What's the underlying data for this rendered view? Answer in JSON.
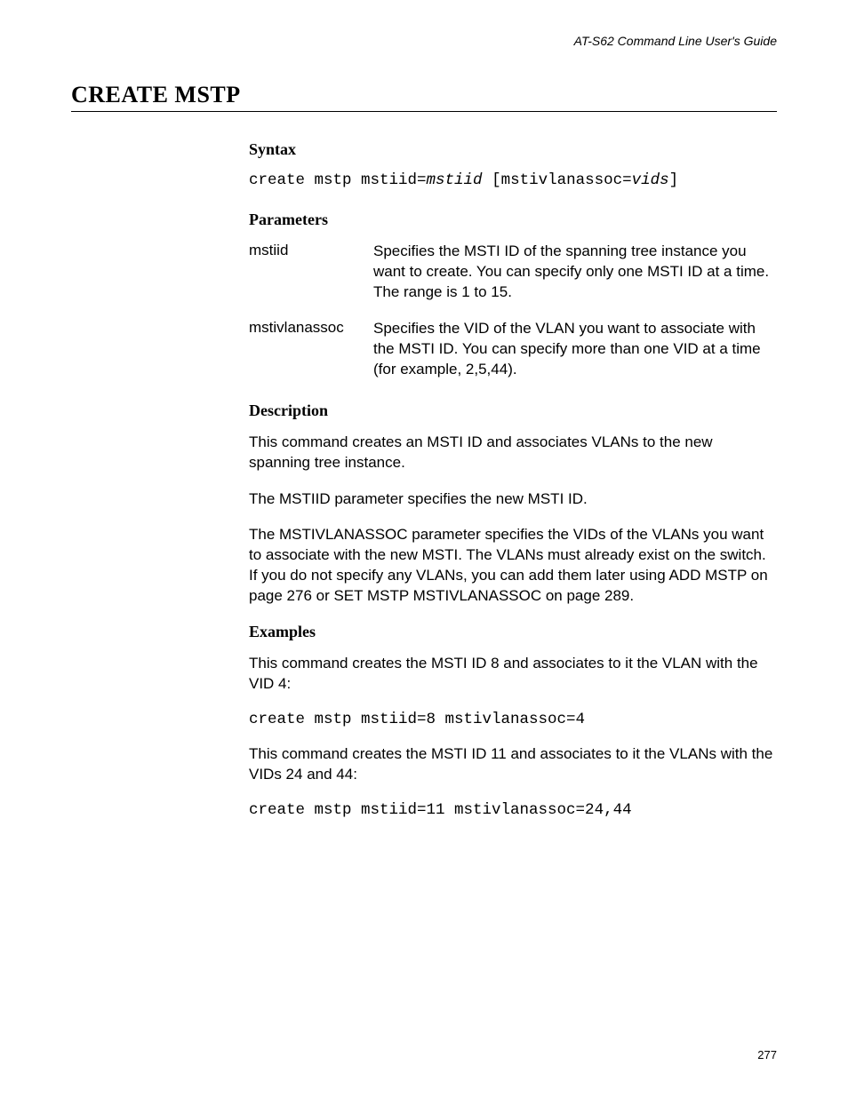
{
  "running_head": "AT-S62 Command Line User's Guide",
  "title": "CREATE MSTP",
  "syntax_heading": "Syntax",
  "syntax": {
    "part1": "create mstp mstiid=",
    "var1": "mstiid",
    "part2": " [mstivlanassoc=",
    "var2": "vids",
    "part3": "]"
  },
  "parameters_heading": "Parameters",
  "parameters": [
    {
      "name": "mstiid",
      "desc": "Specifies the MSTI ID of the spanning tree instance you want to create. You can specify only one MSTI ID at a time. The range is 1 to 15."
    },
    {
      "name": "mstivlanassoc",
      "desc": "Specifies the VID of the VLAN you want to associate with the MSTI ID. You can specify more than one VID at a time (for example, 2,5,44)."
    }
  ],
  "description_heading": "Description",
  "description_paras": [
    "This command creates an MSTI ID and associates VLANs to the new spanning tree instance.",
    "The MSTIID parameter specifies the new MSTI ID.",
    "The MSTIVLANASSOC parameter specifies the VIDs of the VLANs you want to associate with the new MSTI. The VLANs must already exist on the switch. If you do not specify any VLANs, you can add them later using ADD MSTP on page 276 or SET MSTP MSTIVLANASSOC on page 289."
  ],
  "examples_heading": "Examples",
  "examples": [
    {
      "intro": "This command creates the MSTI ID 8 and associates to it the VLAN with the VID 4:",
      "code": "create mstp mstiid=8 mstivlanassoc=4"
    },
    {
      "intro": "This command creates the MSTI ID 11 and associates to it the VLANs with the VIDs 24 and 44:",
      "code": "create mstp mstiid=11 mstivlanassoc=24,44"
    }
  ],
  "page_number": "277",
  "colors": {
    "text": "#000000",
    "background": "#ffffff",
    "rule": "#000000"
  },
  "fonts": {
    "serif_heading": "Century Schoolbook",
    "body": "Myriad Pro / Segoe UI",
    "mono": "Courier New"
  }
}
